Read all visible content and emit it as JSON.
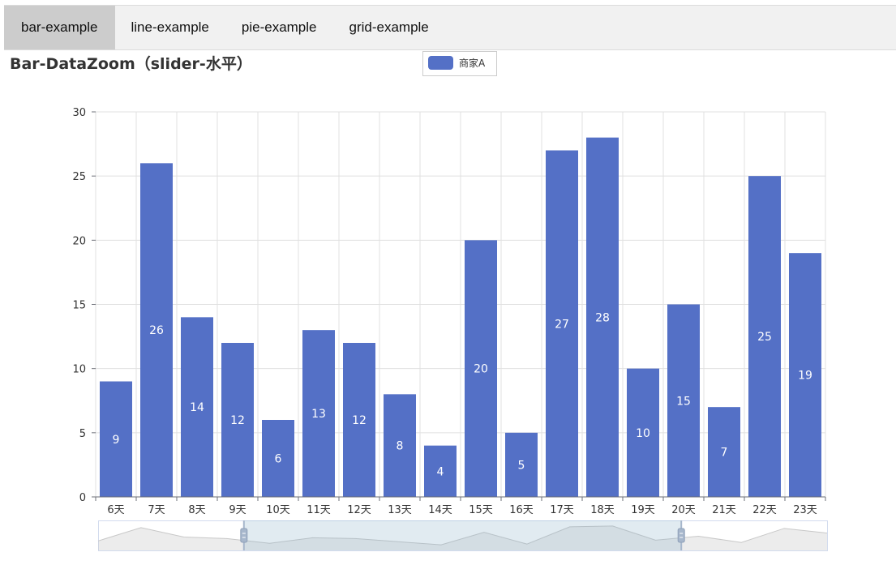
{
  "tabs": [
    {
      "label": "bar-example",
      "active": true
    },
    {
      "label": "line-example",
      "active": false
    },
    {
      "label": "pie-example",
      "active": false
    },
    {
      "label": "grid-example",
      "active": false
    }
  ],
  "colors": {
    "bar": "#5470c6",
    "grid": "#e0e0e0",
    "axis": "#6e7079",
    "zoom_fill": "rgba(135,175,200,0.25)",
    "zoom_handle": "#a7b7cc"
  },
  "data_zoom": {
    "type": "slider",
    "orientation": "horizontal",
    "start": 0.2,
    "end": 0.8
  },
  "chart_data": {
    "type": "bar",
    "title": "Bar-DataZoom（slider-水平）",
    "categories": [
      "6天",
      "7天",
      "8天",
      "9天",
      "10天",
      "11天",
      "12天",
      "13天",
      "14天",
      "15天",
      "16天",
      "17天",
      "18天",
      "19天",
      "20天",
      "21天",
      "22天",
      "23天"
    ],
    "series": [
      {
        "name": "商家A",
        "values": [
          9,
          26,
          14,
          12,
          6,
          13,
          12,
          8,
          4,
          20,
          5,
          27,
          28,
          10,
          15,
          7,
          25,
          19
        ]
      }
    ],
    "yticks": [
      "0",
      "5",
      "10",
      "15",
      "20",
      "25",
      "30"
    ],
    "ylim": [
      0,
      30
    ],
    "grid": true,
    "legend_position": "top-center",
    "data_labels": "inside"
  }
}
